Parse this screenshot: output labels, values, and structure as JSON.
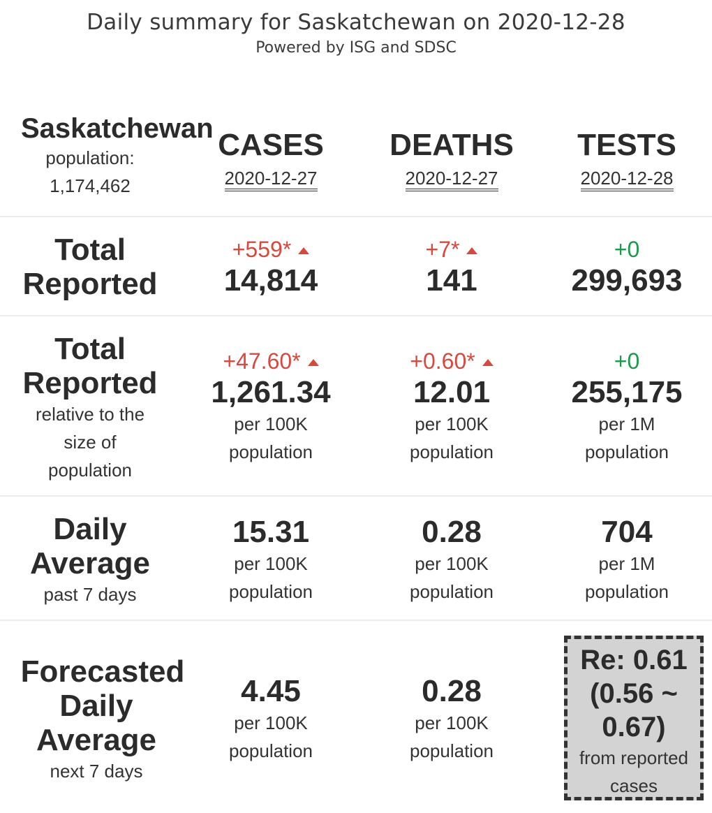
{
  "header": {
    "title": "Daily summary for Saskatchewan on 2020-12-28",
    "subtitle": "Powered by ISG and SDSC"
  },
  "region": {
    "name": "Saskatchewan",
    "population_label": "population:",
    "population_value": "1,174,462"
  },
  "columns": [
    {
      "label": "CASES",
      "date": "2020-12-27"
    },
    {
      "label": "DEATHS",
      "date": "2020-12-27"
    },
    {
      "label": "TESTS",
      "date": "2020-12-28"
    }
  ],
  "total_reported": {
    "label_lines": [
      "Total",
      "Reported"
    ],
    "cells": [
      {
        "delta": "+559*",
        "trend": "up",
        "value": "14,814"
      },
      {
        "delta": "+7*",
        "trend": "up",
        "value": "141"
      },
      {
        "delta": "+0",
        "trend": "flat",
        "value": "299,693"
      }
    ]
  },
  "total_relative": {
    "label_lines": [
      "Total",
      "Reported"
    ],
    "sub_lines": [
      "relative to the",
      "size of",
      "population"
    ],
    "cells": [
      {
        "delta": "+47.60*",
        "trend": "up",
        "value": "1,261.34",
        "unit_lines": [
          "per 100K",
          "population"
        ]
      },
      {
        "delta": "+0.60*",
        "trend": "up",
        "value": "12.01",
        "unit_lines": [
          "per 100K",
          "population"
        ]
      },
      {
        "delta": "+0",
        "trend": "flat",
        "value": "255,175",
        "unit_lines": [
          "per 1M",
          "population"
        ]
      }
    ]
  },
  "daily_average": {
    "label_lines": [
      "Daily",
      "Average"
    ],
    "sub_lines": [
      "past 7 days"
    ],
    "cells": [
      {
        "value": "15.31",
        "unit_lines": [
          "per 100K",
          "population"
        ]
      },
      {
        "value": "0.28",
        "unit_lines": [
          "per 100K",
          "population"
        ]
      },
      {
        "value": "704",
        "unit_lines": [
          "per 1M",
          "population"
        ]
      }
    ]
  },
  "forecast": {
    "label_lines": [
      "Forecasted",
      "Daily",
      "Average"
    ],
    "sub_lines": [
      "next 7 days"
    ],
    "cells": [
      {
        "value": "4.45",
        "unit_lines": [
          "per 100K",
          "population"
        ]
      },
      {
        "value": "0.28",
        "unit_lines": [
          "per 100K",
          "population"
        ]
      }
    ],
    "re_box": {
      "lines": [
        "Re: 0.61",
        "(0.56 ~",
        "0.67)"
      ],
      "sub_lines": [
        "from reported",
        "cases"
      ]
    }
  },
  "colors": {
    "increase": "#d9483b",
    "no_change": "#1a9a4a",
    "re_box_fill": "#d3d3d3"
  }
}
